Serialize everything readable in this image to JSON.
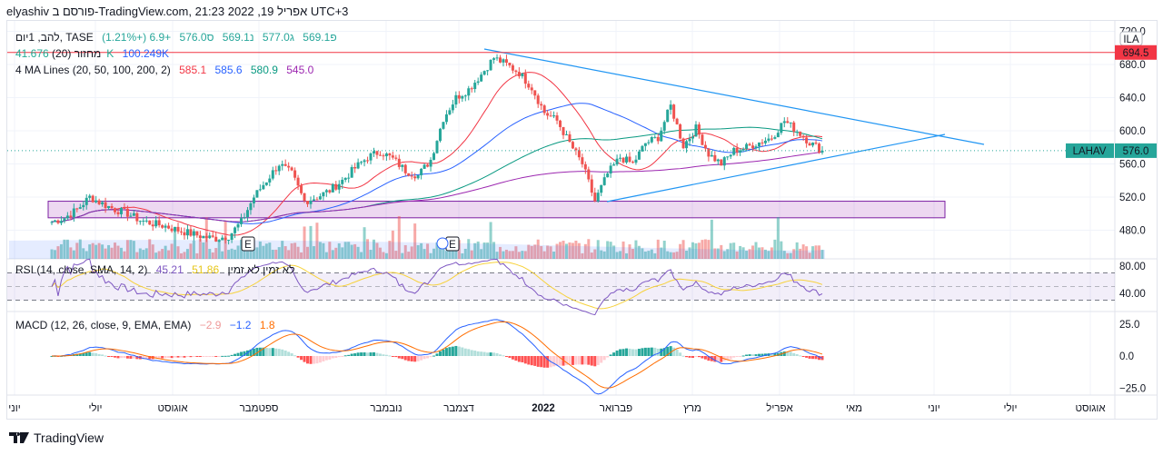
{
  "header": {
    "title": "elyashiv פורסם ב-TradingView.com, 21:23 2022 ,19 אפריל UTC+3"
  },
  "legend": {
    "symbol": "להב, 1יום, TASE",
    "open": "פ569.1",
    "high": "ג577.0",
    "low": "נ569.1",
    "close": "ס576.0",
    "change": "+6.9 (+1.21%)",
    "volume_label": "מחזור (20)",
    "volume": "41.676K",
    "volume_ma": "100.249K",
    "ma_label": "4 MA Lines (20, 50, 100, 200, 2)",
    "ma_values": [
      "585.1",
      "585.6",
      "580.9",
      "545.0"
    ]
  },
  "rsi": {
    "label": "RSI (14, close, SMA, 14, 2)",
    "value": "45.21",
    "ma": "51.86",
    "extra": "לא זמין לא זמין"
  },
  "macd": {
    "label": "MACD (12, 26, close, 9, EMA, EMA)",
    "hist": "−2.9",
    "macd": "−1.2",
    "signal": "1.8"
  },
  "price_axis": {
    "currency": "ILA",
    "ticks": [
      "720.0",
      "680.0",
      "640.0",
      "600.0",
      "560.0",
      "520.0",
      "480.0"
    ],
    "high_marker": "694.5",
    "last_symbol": "LAHAV",
    "last_price": "576.0"
  },
  "rsi_axis": [
    "80.00",
    "40.00"
  ],
  "macd_axis": [
    "25.0",
    "0.0",
    "−25.0"
  ],
  "time_axis": [
    "יוני",
    "יולי",
    "אוגוסט",
    "ספטמבר",
    "נובמבר",
    "דצמבר",
    "2022",
    "פברואר",
    "מרץ",
    "אפריל",
    "מאי",
    "יוני",
    "יולי",
    "אוגוסט"
  ],
  "earnings_marker": "E",
  "footer": {
    "brand": "TradingView"
  },
  "colors": {
    "up": "#26a69a",
    "down": "#ef5350",
    "ma20": "#f23645",
    "ma50": "#2962ff",
    "ma100": "#089981",
    "ma200": "#9c27b0",
    "trend": "#2196f3",
    "rsi": "#7e57c2",
    "rsima": "#f7d23b"
  },
  "chart_data": {
    "type": "candlestick",
    "title": "LAHAV (להב) 1D, TASE",
    "ylabel": "ILA",
    "ylim": [
      460,
      725
    ],
    "closes_approx": [
      490,
      495,
      505,
      520,
      512,
      505,
      500,
      492,
      488,
      485,
      480,
      476,
      472,
      470,
      473,
      490,
      520,
      540,
      560,
      548,
      515,
      520,
      528,
      540,
      555,
      568,
      575,
      566,
      552,
      546,
      565,
      615,
      640,
      650,
      668,
      688,
      680,
      670,
      652,
      622,
      612,
      585,
      560,
      515,
      548,
      568,
      560,
      585,
      592,
      630,
      582,
      603,
      572,
      560,
      576,
      580,
      586,
      592,
      612,
      600,
      586,
      576
    ],
    "resistance_zone": [
      495,
      515
    ],
    "trendlines": "descending resistance from ~690 (Dec) and ascending support from ~515 (Feb)"
  }
}
